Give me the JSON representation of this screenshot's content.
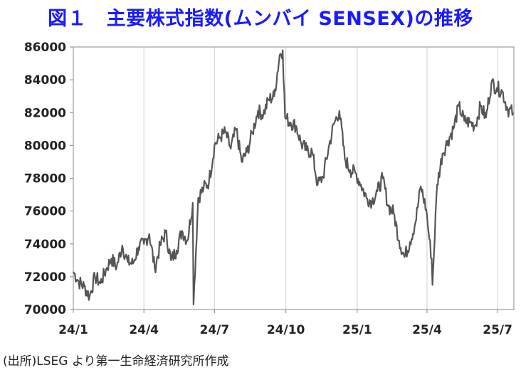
{
  "title": "図１　主要株式指数(ムンバイ SENSEX)の推移",
  "title_color": "#1a1aff",
  "source": "(出所)LSEG より第一生命経済研究所作成",
  "chart_data": {
    "type": "line",
    "title": "図１　主要株式指数(ムンバイ SENSEX)の推移",
    "xlabel": "",
    "ylabel": "",
    "ylim": [
      70000,
      86000
    ],
    "yticks": [
      70000,
      72000,
      74000,
      76000,
      78000,
      80000,
      82000,
      84000,
      86000
    ],
    "ytick_labels": [
      "70000",
      "72000",
      "74000",
      "76000",
      "78000",
      "80000",
      "82000",
      "84000",
      "86000"
    ],
    "xtick_labels": [
      "24/1",
      "24/4",
      "24/7",
      "24/10",
      "25/1",
      "25/4",
      "25/7"
    ],
    "xtick_dates": [
      "2024-01-01",
      "2024-04-01",
      "2024-07-01",
      "2024-10-01",
      "2025-01-01",
      "2025-04-01",
      "2025-07-01"
    ],
    "xlim": [
      "2024-01-01",
      "2025-07-22"
    ],
    "grid": "vertical",
    "line_color": "#555555",
    "series": [
      {
        "name": "",
        "x": [
          "2024-01-01",
          "2024-01-08",
          "2024-01-15",
          "2024-01-22",
          "2024-01-29",
          "2024-02-05",
          "2024-02-12",
          "2024-02-19",
          "2024-02-26",
          "2024-03-04",
          "2024-03-11",
          "2024-03-18",
          "2024-03-25",
          "2024-04-01",
          "2024-04-08",
          "2024-04-15",
          "2024-04-22",
          "2024-04-29",
          "2024-05-06",
          "2024-05-13",
          "2024-05-20",
          "2024-05-27",
          "2024-06-03",
          "2024-06-04",
          "2024-06-10",
          "2024-06-17",
          "2024-06-24",
          "2024-07-01",
          "2024-07-08",
          "2024-07-15",
          "2024-07-22",
          "2024-07-29",
          "2024-08-05",
          "2024-08-12",
          "2024-08-19",
          "2024-08-26",
          "2024-09-02",
          "2024-09-09",
          "2024-09-16",
          "2024-09-23",
          "2024-09-27",
          "2024-09-30",
          "2024-10-07",
          "2024-10-14",
          "2024-10-21",
          "2024-10-28",
          "2024-11-04",
          "2024-11-11",
          "2024-11-18",
          "2024-11-25",
          "2024-12-02",
          "2024-12-09",
          "2024-12-16",
          "2024-12-23",
          "2024-12-30",
          "2025-01-06",
          "2025-01-13",
          "2025-01-20",
          "2025-01-27",
          "2025-02-03",
          "2025-02-10",
          "2025-02-17",
          "2025-02-24",
          "2025-03-03",
          "2025-03-10",
          "2025-03-17",
          "2025-03-24",
          "2025-03-31",
          "2025-04-04",
          "2025-04-07",
          "2025-04-08",
          "2025-04-14",
          "2025-04-21",
          "2025-04-28",
          "2025-05-05",
          "2025-05-12",
          "2025-05-19",
          "2025-05-26",
          "2025-06-02",
          "2025-06-09",
          "2025-06-16",
          "2025-06-23",
          "2025-06-30",
          "2025-07-07",
          "2025-07-14",
          "2025-07-21"
        ],
        "values": [
          72300,
          71700,
          71400,
          70800,
          72000,
          71600,
          72400,
          73100,
          72600,
          73900,
          72900,
          72800,
          73800,
          74000,
          74600,
          72500,
          73900,
          74700,
          73000,
          73600,
          74800,
          74200,
          76500,
          70300,
          76800,
          77400,
          77800,
          80000,
          80500,
          80800,
          79800,
          81000,
          79000,
          79600,
          80800,
          82100,
          81900,
          82800,
          83000,
          85500,
          85800,
          81700,
          81400,
          81200,
          80100,
          79700,
          79600,
          77600,
          78100,
          79800,
          81300,
          82100,
          79200,
          78500,
          78300,
          77600,
          76800,
          76600,
          77200,
          78000,
          76300,
          75900,
          74200,
          73200,
          74100,
          75300,
          77500,
          76100,
          74300,
          73100,
          71500,
          77600,
          79500,
          80300,
          81000,
          82400,
          81500,
          81400,
          81200,
          82400,
          81700,
          83800,
          83500,
          83300,
          82200,
          82000
        ]
      }
    ]
  }
}
